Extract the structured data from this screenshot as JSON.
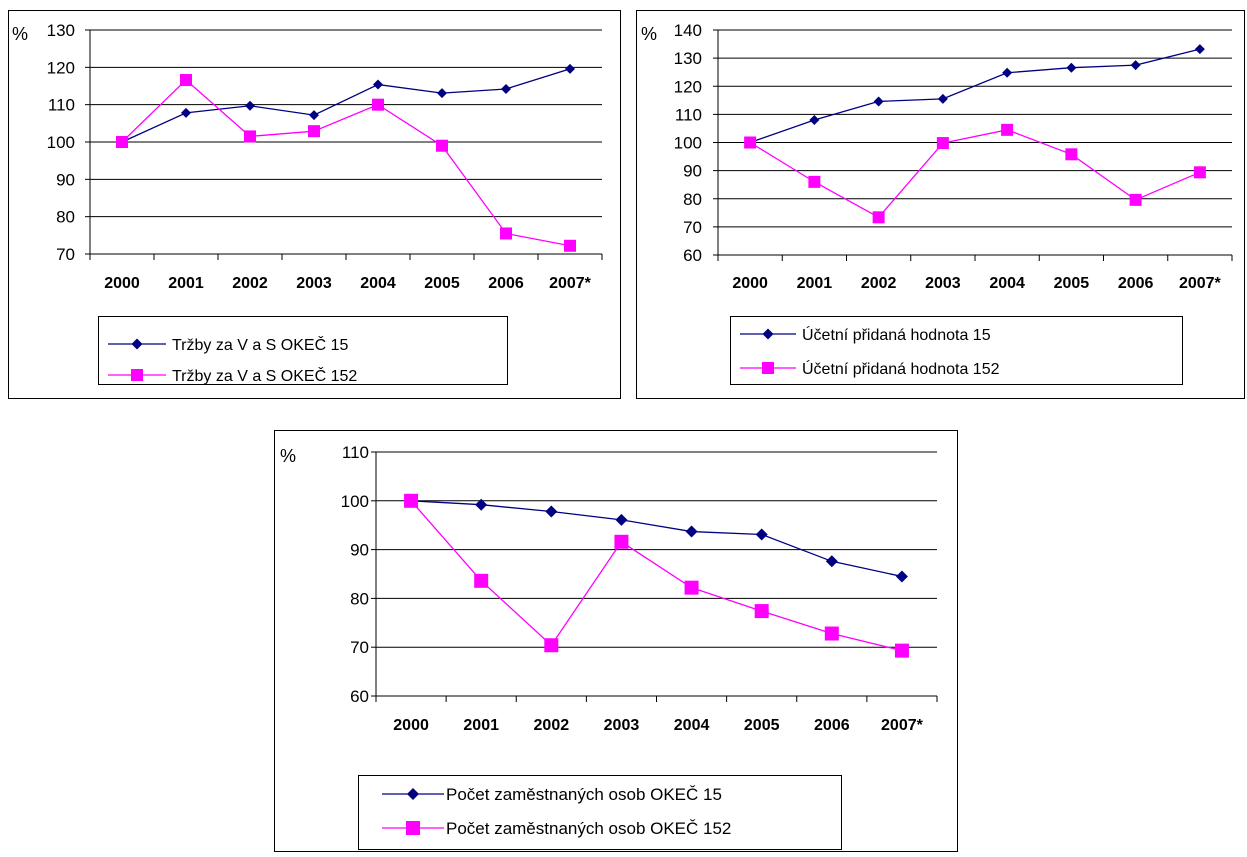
{
  "colors": {
    "series_15": "#000080",
    "series_152": "#ff00ff",
    "grid": "#000000",
    "frame": "#000000"
  },
  "chart_data": [
    {
      "type": "line",
      "ylabel": "%",
      "ylim": [
        70,
        130
      ],
      "ystep": 10,
      "categories": [
        "2000",
        "2001",
        "2002",
        "2003",
        "2004",
        "2005",
        "2006",
        "2007*"
      ],
      "grid": true,
      "legend_position": "bottom",
      "series": [
        {
          "name": "Tržby za V a S OKEČ 15",
          "marker": "diamond",
          "values": [
            100,
            107.8,
            109.7,
            107.2,
            115.4,
            113.1,
            114.2,
            119.6
          ]
        },
        {
          "name": "Tržby za V a S OKEČ 152",
          "marker": "square",
          "values": [
            100,
            116.6,
            101.5,
            102.9,
            110.0,
            99.0,
            75.5,
            72.2
          ]
        }
      ]
    },
    {
      "type": "line",
      "ylabel": "%",
      "ylim": [
        60,
        140
      ],
      "ystep": 10,
      "categories": [
        "2000",
        "2001",
        "2002",
        "2003",
        "2004",
        "2005",
        "2006",
        "2007*"
      ],
      "grid": true,
      "legend_position": "bottom",
      "series": [
        {
          "name": "Účetní přidaná hodnota 15",
          "marker": "diamond",
          "values": [
            100,
            108.0,
            114.6,
            115.5,
            124.8,
            126.6,
            127.5,
            133.2
          ]
        },
        {
          "name": "Účetní přidaná hodnota 152",
          "marker": "square",
          "values": [
            100,
            86.0,
            73.4,
            99.8,
            104.5,
            95.8,
            79.6,
            89.4
          ]
        }
      ]
    },
    {
      "type": "line",
      "ylabel": "%",
      "ylim": [
        60,
        110
      ],
      "ystep": 10,
      "categories": [
        "2000",
        "2001",
        "2002",
        "2003",
        "2004",
        "2005",
        "2006",
        "2007*"
      ],
      "grid": true,
      "legend_position": "bottom",
      "series": [
        {
          "name": "Počet zaměstnaných osob OKEČ 15",
          "marker": "diamond",
          "values": [
            100,
            99.2,
            97.8,
            96.1,
            93.7,
            93.1,
            87.6,
            84.5
          ]
        },
        {
          "name": "Počet zaměstnaných osob OKEČ 152",
          "marker": "square",
          "values": [
            100,
            83.6,
            70.4,
            91.6,
            82.2,
            77.4,
            72.8,
            69.3
          ]
        }
      ]
    }
  ]
}
